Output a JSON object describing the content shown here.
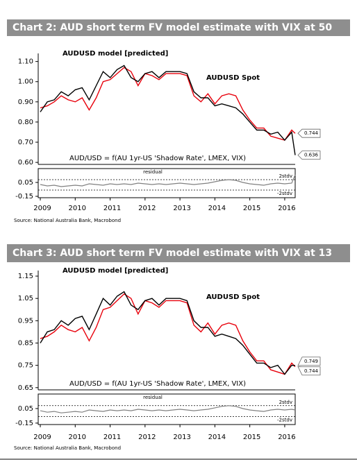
{
  "chart_data": [
    {
      "type": "line",
      "title": "Chart 2: AUD short term FV model estimate with VIX at 50",
      "annotation": "AUD/USD = f(AU 1yr-US 'Shadow Rate', LMEX, VIX)",
      "source": "Source: National Australia Bank, Macrobond",
      "x": [
        2009.0,
        2009.2,
        2009.4,
        2009.6,
        2009.8,
        2010.0,
        2010.2,
        2010.4,
        2010.6,
        2010.8,
        2011.0,
        2011.2,
        2011.4,
        2011.6,
        2011.8,
        2012.0,
        2012.2,
        2012.4,
        2012.6,
        2012.8,
        2013.0,
        2013.2,
        2013.4,
        2013.6,
        2013.8,
        2014.0,
        2014.2,
        2014.4,
        2014.6,
        2014.8,
        2015.0,
        2015.2,
        2015.4,
        2015.6,
        2015.8,
        2016.0,
        2016.2,
        2016.3
      ],
      "series": [
        {
          "name": "AUDUSD model [predicted]",
          "color": "#000000",
          "values": [
            0.85,
            0.9,
            0.91,
            0.95,
            0.93,
            0.96,
            0.97,
            0.91,
            0.98,
            1.05,
            1.02,
            1.06,
            1.08,
            1.02,
            1.0,
            1.04,
            1.05,
            1.02,
            1.05,
            1.05,
            1.05,
            1.04,
            0.95,
            0.92,
            0.92,
            0.88,
            0.89,
            0.88,
            0.87,
            0.84,
            0.8,
            0.76,
            0.76,
            0.74,
            0.75,
            0.71,
            0.75,
            0.636
          ]
        },
        {
          "name": "AUDUSD Spot",
          "color": "#e8000b",
          "values": [
            0.87,
            0.88,
            0.9,
            0.93,
            0.91,
            0.9,
            0.92,
            0.86,
            0.92,
            1.0,
            1.01,
            1.04,
            1.07,
            1.05,
            0.98,
            1.04,
            1.03,
            1.01,
            1.04,
            1.04,
            1.04,
            1.03,
            0.93,
            0.9,
            0.94,
            0.89,
            0.93,
            0.94,
            0.93,
            0.86,
            0.81,
            0.77,
            0.77,
            0.73,
            0.72,
            0.71,
            0.76,
            0.744
          ]
        }
      ],
      "callouts": [
        {
          "value": 0.744,
          "color": "#e8000b"
        },
        {
          "value": 0.636,
          "color": "#000000"
        }
      ],
      "xlim": [
        2008.94,
        2016.3
      ],
      "xticks": [
        2009,
        2010,
        2011,
        2012,
        2013,
        2014,
        2015,
        2016
      ],
      "ylim": [
        0.59,
        1.14
      ],
      "yticks": [
        {
          "value": 1.1,
          "label": "1.10"
        },
        {
          "value": 1.0,
          "label": "1.00"
        },
        {
          "value": 0.9,
          "label": "0.90"
        },
        {
          "value": 0.8,
          "label": "0.80"
        },
        {
          "value": 0.7,
          "label": "0.70"
        },
        {
          "value": 0.6,
          "label": "0.60"
        }
      ],
      "residual": {
        "name": "residual",
        "color": "#808080",
        "values": [
          0.02,
          0.0,
          0.01,
          -0.01,
          0.0,
          0.01,
          0.0,
          0.03,
          0.02,
          0.01,
          0.03,
          0.02,
          0.03,
          0.02,
          0.04,
          0.03,
          0.02,
          0.03,
          0.02,
          0.03,
          0.04,
          0.03,
          0.02,
          0.03,
          0.04,
          0.06,
          0.08,
          0.09,
          0.08,
          0.05,
          0.03,
          0.02,
          0.01,
          0.03,
          0.04,
          0.03,
          0.04,
          0.16
        ],
        "ylim": [
          -0.17,
          0.25
        ],
        "yticks": [
          0.05,
          -0.15
        ],
        "bands": [
          {
            "label": "2stdv",
            "value": 0.09
          },
          {
            "label": "-2stdv",
            "value": -0.06
          }
        ]
      }
    },
    {
      "type": "line",
      "title": "Chart 3:  AUD short term FV model estimate with VIX at 13",
      "annotation": "AUD/USD = f(AU 1yr-US 'Shadow Rate', LMEX, VIX)",
      "source": "Source: National Australia Bank, Macrobond",
      "x": [
        2009.0,
        2009.2,
        2009.4,
        2009.6,
        2009.8,
        2010.0,
        2010.2,
        2010.4,
        2010.6,
        2010.8,
        2011.0,
        2011.2,
        2011.4,
        2011.6,
        2011.8,
        2012.0,
        2012.2,
        2012.4,
        2012.6,
        2012.8,
        2013.0,
        2013.2,
        2013.4,
        2013.6,
        2013.8,
        2014.0,
        2014.2,
        2014.4,
        2014.6,
        2014.8,
        2015.0,
        2015.2,
        2015.4,
        2015.6,
        2015.8,
        2016.0,
        2016.2,
        2016.3
      ],
      "series": [
        {
          "name": "AUDUSD model [predicted]",
          "color": "#000000",
          "values": [
            0.85,
            0.9,
            0.91,
            0.95,
            0.93,
            0.96,
            0.97,
            0.91,
            0.98,
            1.05,
            1.02,
            1.06,
            1.08,
            1.02,
            1.0,
            1.04,
            1.05,
            1.02,
            1.05,
            1.05,
            1.05,
            1.04,
            0.95,
            0.92,
            0.92,
            0.88,
            0.89,
            0.88,
            0.87,
            0.84,
            0.8,
            0.76,
            0.76,
            0.74,
            0.75,
            0.71,
            0.75,
            0.749
          ]
        },
        {
          "name": "AUDUSD Spot",
          "color": "#e8000b",
          "values": [
            0.87,
            0.88,
            0.9,
            0.93,
            0.91,
            0.9,
            0.92,
            0.86,
            0.92,
            1.0,
            1.01,
            1.04,
            1.07,
            1.05,
            0.98,
            1.04,
            1.03,
            1.01,
            1.04,
            1.04,
            1.04,
            1.03,
            0.93,
            0.9,
            0.94,
            0.89,
            0.93,
            0.94,
            0.93,
            0.86,
            0.81,
            0.77,
            0.77,
            0.73,
            0.72,
            0.71,
            0.76,
            0.744
          ]
        }
      ],
      "callouts": [
        {
          "value": 0.749,
          "color": "#000000"
        },
        {
          "value": 0.744,
          "color": "#e8000b"
        }
      ],
      "xlim": [
        2008.94,
        2016.3
      ],
      "xticks": [
        2009,
        2010,
        2011,
        2012,
        2013,
        2014,
        2015,
        2016
      ],
      "ylim": [
        0.64,
        1.175
      ],
      "yticks": [
        1.15,
        1.05,
        0.95,
        0.85,
        0.75,
        0.65
      ],
      "residual": {
        "name": "residual",
        "color": "#808080",
        "values": [
          0.02,
          0.0,
          0.01,
          -0.01,
          0.0,
          0.01,
          0.0,
          0.03,
          0.02,
          0.01,
          0.03,
          0.02,
          0.03,
          0.02,
          0.04,
          0.03,
          0.02,
          0.03,
          0.02,
          0.03,
          0.04,
          0.03,
          0.02,
          0.03,
          0.04,
          0.06,
          0.08,
          0.09,
          0.08,
          0.05,
          0.03,
          0.02,
          0.01,
          0.03,
          0.04,
          0.03,
          0.04,
          0.03
        ],
        "ylim": [
          -0.17,
          0.25
        ],
        "yticks": [
          0.05,
          -0.15
        ],
        "bands": [
          {
            "label": "2stdv",
            "value": 0.09
          },
          {
            "label": "-2stdv",
            "value": -0.06
          }
        ]
      }
    }
  ]
}
